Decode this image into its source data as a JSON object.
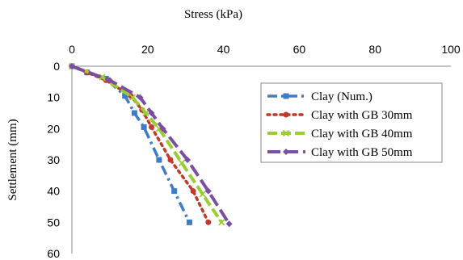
{
  "chart_data": {
    "type": "line",
    "title": "",
    "xlabel": "Stress (kPa)",
    "ylabel": "Settlement (mm)",
    "xlim": [
      0,
      100
    ],
    "ylim": [
      0,
      60
    ],
    "x_axis_position": "top",
    "y_axis_inverted": true,
    "xticks": [
      "0",
      "20",
      "40",
      "60",
      "80",
      "100"
    ],
    "yticks": [
      "0",
      "10",
      "20",
      "30",
      "40",
      "50",
      "60"
    ],
    "grid": false,
    "legend_position": "right",
    "series": [
      {
        "name": "Clay (Num.)",
        "color": "#3D7CC9",
        "dash": "dash-dot",
        "marker": "square",
        "points": [
          [
            0,
            0
          ],
          [
            4,
            2
          ],
          [
            9,
            4
          ],
          [
            14,
            9.5
          ],
          [
            16.5,
            15
          ],
          [
            19,
            19.5
          ],
          [
            23,
            30
          ],
          [
            27,
            40
          ],
          [
            31,
            50
          ]
        ]
      },
      {
        "name": "Clay with GB 30mm",
        "color": "#C0392B",
        "dash": "dotted",
        "marker": "circle",
        "points": [
          [
            0,
            0
          ],
          [
            4,
            2
          ],
          [
            9,
            4.5
          ],
          [
            15.5,
            9.5
          ],
          [
            18.5,
            14
          ],
          [
            21,
            19.5
          ],
          [
            26,
            30
          ],
          [
            32,
            40
          ],
          [
            36,
            50
          ]
        ]
      },
      {
        "name": "Clay with GB 40mm",
        "color": "#9ACD32",
        "dash": "dashed",
        "marker": "x",
        "points": [
          [
            0,
            0
          ],
          [
            8,
            3.5
          ],
          [
            16,
            10
          ],
          [
            19.5,
            15
          ],
          [
            23,
            20
          ],
          [
            29,
            31
          ],
          [
            34.5,
            41
          ],
          [
            39.5,
            50
          ]
        ]
      },
      {
        "name": "Clay with GB 50mm",
        "color": "#7A4FA3",
        "dash": "long-dash",
        "marker": "diamond",
        "points": [
          [
            0,
            0
          ],
          [
            10,
            4.5
          ],
          [
            18,
            10
          ],
          [
            21,
            15
          ],
          [
            24,
            20
          ],
          [
            30.5,
            30
          ],
          [
            36,
            40
          ],
          [
            41.5,
            50.5
          ]
        ]
      }
    ]
  }
}
